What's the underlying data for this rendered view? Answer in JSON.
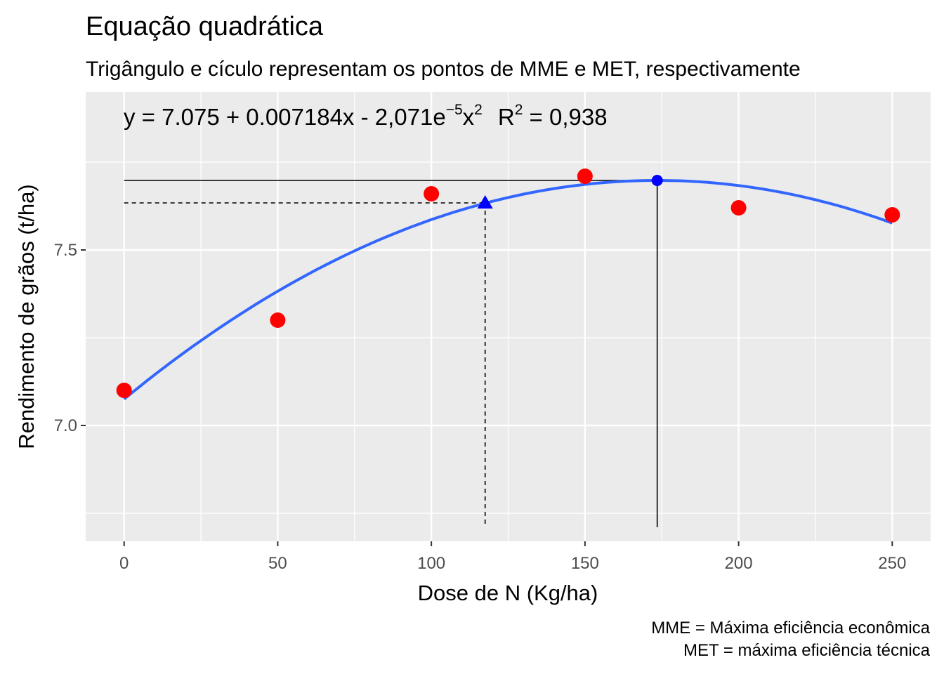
{
  "chart_data": {
    "type": "scatter",
    "title": "Equação quadrática",
    "subtitle": "Trigângulo e cículo representam os pontos de MME e MET, respectivamente",
    "xlabel": "Dose de N (Kg/ha)",
    "ylabel": "Rendimento de grãos (t/ha)",
    "xlim": [
      -12.5,
      262.5
    ],
    "ylim": [
      6.67,
      7.95
    ],
    "x_ticks": [
      0,
      50,
      100,
      150,
      200,
      250
    ],
    "y_ticks": [
      7.0,
      7.5
    ],
    "x_tick_labels": [
      "0",
      "50",
      "100",
      "150",
      "200",
      "250"
    ],
    "y_tick_labels": [
      "7.0",
      "7.5"
    ],
    "grid": true,
    "points": {
      "color": "#ff0000",
      "x": [
        0,
        50,
        100,
        150,
        200,
        250
      ],
      "y": [
        7.1,
        7.3,
        7.66,
        7.71,
        7.62,
        7.6
      ]
    },
    "fit": {
      "color": "#3366ff",
      "intercept": 7.075,
      "b1": 0.007184,
      "b2": -2.071e-05,
      "x_range": [
        0,
        250
      ]
    },
    "mme": {
      "marker": "triangle",
      "color": "#0000ff",
      "x": 117.5,
      "y": 7.634
    },
    "met": {
      "marker": "circle",
      "color": "#0000ff",
      "x": 173.5,
      "y": 7.698
    },
    "equation": {
      "main": "y = 7.075 + 0.007184x - 2,071e",
      "exp": "−5",
      "x2": "x",
      "x2_exp": "2",
      "r": "R",
      "r_exp": "2",
      "r_value": " = 0,938"
    },
    "caption": [
      "MME = Máxima eficiência econômica",
      "MET = máxima eficiência técnica"
    ]
  }
}
